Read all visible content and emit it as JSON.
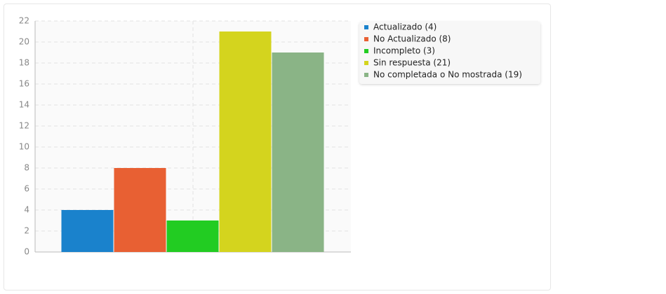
{
  "chart_data": {
    "type": "bar",
    "series": [
      {
        "name": "Actualizado (4)",
        "color": "#1a82cc",
        "values": [
          4
        ]
      },
      {
        "name": "No Actualizado (8)",
        "color": "#e86033",
        "values": [
          8
        ]
      },
      {
        "name": "Incompleto (3)",
        "color": "#22cc22",
        "values": [
          3
        ]
      },
      {
        "name": "Sin respuesta (21)",
        "color": "#d4d41e",
        "values": [
          21
        ]
      },
      {
        "name": "No completada o No mostrada (19)",
        "color": "#8ab486",
        "values": [
          19
        ]
      }
    ],
    "ylim": [
      0,
      22
    ],
    "yticks": [
      0,
      2,
      4,
      6,
      8,
      10,
      12,
      14,
      16,
      18,
      20,
      22
    ],
    "grid": true,
    "legend": "right"
  }
}
